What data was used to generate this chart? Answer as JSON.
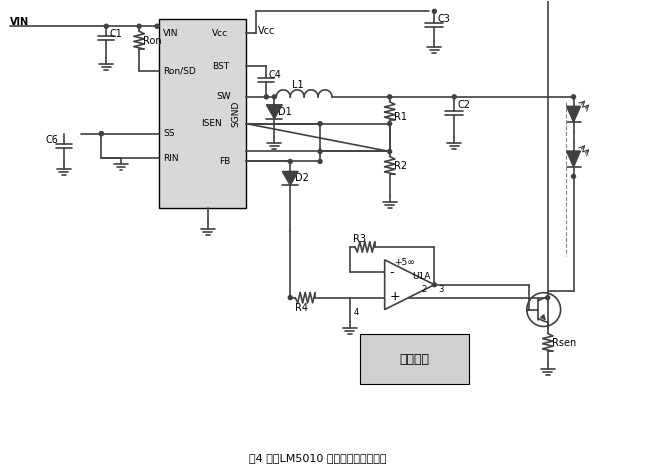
{
  "title": "图4 使用LM5010 搭建的可变降压电路",
  "bg_color": "#ffffff",
  "line_color": "#404040",
  "fig_width": 6.58,
  "fig_height": 4.71,
  "dpi": 100,
  "labels": {
    "VIN": "VIN",
    "Vcc": "Vcc",
    "VIN_pin": "VIN",
    "BST": "BST",
    "RonSD": "Ron/SD",
    "SW": "SW",
    "SS": "SS",
    "SGND": "SGND",
    "ISEN": "ISEN",
    "RIN": "RIN",
    "FB": "FB",
    "C1": "C1",
    "C2": "C2",
    "C3": "C3",
    "C4": "C4",
    "C6": "C6",
    "D1": "D1",
    "D2": "D2",
    "L1": "L1",
    "R1": "R1",
    "R2": "R2",
    "R3": "R3",
    "R4": "R4",
    "Ron": "Ron",
    "U1A": "U1A",
    "plus5inf": "+5∞",
    "num2": "2",
    "num3": "3",
    "num4": "4",
    "Rsen": "Rsen",
    "current_ctrl": "电流控制"
  }
}
